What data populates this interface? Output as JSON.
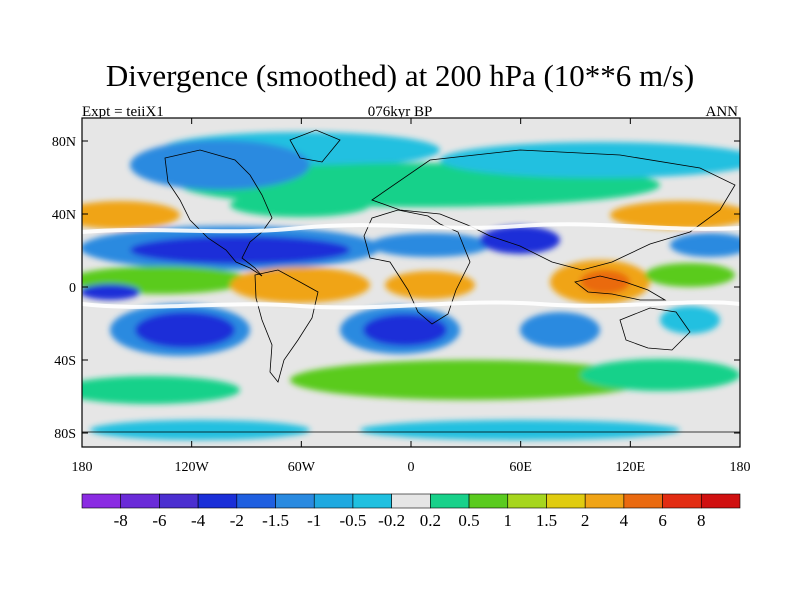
{
  "title": "Divergence (smoothed) at 200 hPa (10**6 m/s)",
  "left_label": "Expt = teiiX1",
  "center_label": "076kyr BP",
  "right_label": "ANN",
  "y_ticks": [
    "80N",
    "40N",
    "0",
    "40S",
    "80S"
  ],
  "x_ticks": [
    "180",
    "120W",
    "60W",
    "0",
    "60E",
    "120E",
    "180"
  ],
  "colorbar": {
    "labels": [
      "-8",
      "-6",
      "-4",
      "-2",
      "-1.5",
      "-1",
      "-0.5",
      "-0.2",
      "0.2",
      "0.5",
      "1",
      "1.5",
      "2",
      "4",
      "6",
      "8"
    ],
    "colors": [
      "#8a2be2",
      "#6a2bd8",
      "#4b2fd0",
      "#1a2fd8",
      "#1f5fe0",
      "#2a8ae0",
      "#1fa9e0",
      "#20c0e0",
      "#e6e6e6",
      "#19d18a",
      "#5acb1f",
      "#a6d61e",
      "#e0cc10",
      "#f0a416",
      "#ea6a10",
      "#e22c12",
      "#d01010"
    ]
  },
  "field_colors": {
    "neutral": "#e6e6e6",
    "neg_weak": "#20c0e0",
    "neg_mid": "#2a8ae0",
    "neg_strong": "#1a2fd8",
    "pos_weak": "#19d18a",
    "pos_mid": "#5acb1f",
    "pos_strong": "#f0a416",
    "pos_max": "#ea6a10"
  }
}
